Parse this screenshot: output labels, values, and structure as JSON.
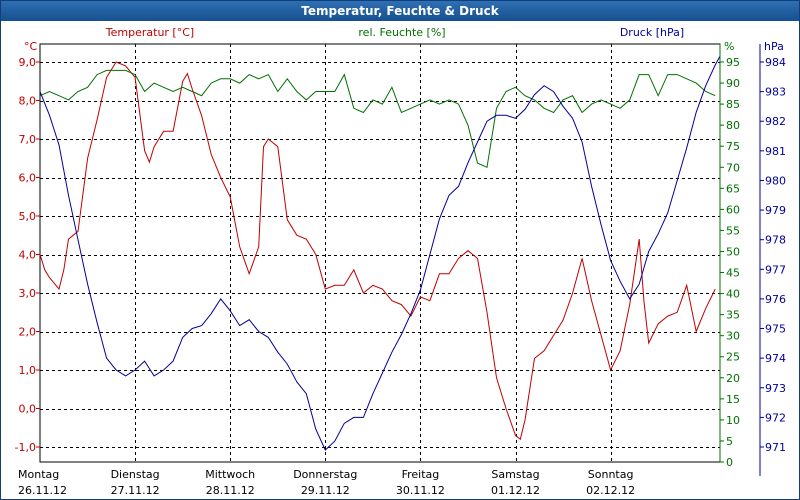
{
  "window": {
    "title": "Temperatur, Feuchte & Druck"
  },
  "colors": {
    "temperature": "#c00000",
    "humidity": "#007000",
    "pressure": "#000099",
    "grid": "#000000",
    "title_bar": "#1c5a9c"
  },
  "chart_data": {
    "type": "line",
    "title": "Temperatur, Feuchte & Druck",
    "axes": {
      "left": {
        "label": "Temperatur [°C]",
        "unit": "°C",
        "min": -1.0,
        "max": 9.0,
        "ticks": [
          "9,0",
          "8,0",
          "7,0",
          "6,0",
          "5,0",
          "4,0",
          "3,0",
          "2,0",
          "1,0",
          "0,0",
          "-1,0"
        ]
      },
      "right_inner": {
        "label": "rel. Feuchte [%]",
        "unit": "%",
        "min": 0,
        "max": 95,
        "ticks": [
          "95",
          "90",
          "85",
          "80",
          "75",
          "70",
          "65",
          "60",
          "55",
          "50",
          "45",
          "40",
          "35",
          "30",
          "25",
          "20",
          "15",
          "10",
          "5",
          "0"
        ]
      },
      "right_outer": {
        "label": "Druck [hPa]",
        "unit": "hPa",
        "min": 971,
        "max": 984,
        "ticks": [
          "984",
          "983",
          "982",
          "981",
          "980",
          "979",
          "978",
          "977",
          "976",
          "975",
          "974",
          "973",
          "972",
          "971"
        ]
      }
    },
    "x_labels": [
      {
        "day": "Montag",
        "date": "26.11.12"
      },
      {
        "day": "Dienstag",
        "date": "27.11.12"
      },
      {
        "day": "Mittwoch",
        "date": "28.11.12"
      },
      {
        "day": "Donnerstag",
        "date": "29.11.12"
      },
      {
        "day": "Freitag",
        "date": "30.11.12"
      },
      {
        "day": "Samstag",
        "date": "01.12.12"
      },
      {
        "day": "Sonntag",
        "date": "02.12.12"
      }
    ],
    "x_range_days": [
      0,
      7.15
    ],
    "grid": true,
    "series": [
      {
        "name": "Temperatur [°C]",
        "axis": "left",
        "x": [
          0,
          0.05,
          0.1,
          0.2,
          0.25,
          0.3,
          0.35,
          0.4,
          0.5,
          0.6,
          0.7,
          0.8,
          0.9,
          1.0,
          1.1,
          1.15,
          1.2,
          1.3,
          1.4,
          1.5,
          1.55,
          1.6,
          1.7,
          1.8,
          1.9,
          2.0,
          2.1,
          2.2,
          2.3,
          2.35,
          2.4,
          2.5,
          2.6,
          2.7,
          2.8,
          2.9,
          3.0,
          3.1,
          3.2,
          3.3,
          3.4,
          3.5,
          3.6,
          3.7,
          3.8,
          3.9,
          4.0,
          4.1,
          4.2,
          4.3,
          4.4,
          4.5,
          4.6,
          4.7,
          4.8,
          4.9,
          5.0,
          5.05,
          5.1,
          5.2,
          5.3,
          5.4,
          5.5,
          5.6,
          5.7,
          5.8,
          5.9,
          6.0,
          6.1,
          6.2,
          6.3,
          6.35,
          6.4,
          6.5,
          6.6,
          6.7,
          6.8,
          6.9,
          7.0,
          7.1
        ],
        "values": [
          4.0,
          3.6,
          3.4,
          3.1,
          3.6,
          4.4,
          4.5,
          4.6,
          6.5,
          7.5,
          8.6,
          9.0,
          8.9,
          8.6,
          6.7,
          6.4,
          6.8,
          7.2,
          7.2,
          8.5,
          8.7,
          8.3,
          7.6,
          6.6,
          6.0,
          5.5,
          4.2,
          3.5,
          4.2,
          6.8,
          7.0,
          6.8,
          4.9,
          4.5,
          4.4,
          4.0,
          3.1,
          3.2,
          3.2,
          3.6,
          3.0,
          3.2,
          3.1,
          2.8,
          2.7,
          2.4,
          2.9,
          2.8,
          3.5,
          3.5,
          3.9,
          4.1,
          3.9,
          2.5,
          0.8,
          0.0,
          -0.7,
          -0.8,
          -0.3,
          1.3,
          1.5,
          1.9,
          2.3,
          3.0,
          3.9,
          2.8,
          1.9,
          1.0,
          1.5,
          2.7,
          4.4,
          2.8,
          1.7,
          2.2,
          2.4,
          2.5,
          3.2,
          2.0,
          2.6,
          3.1
        ]
      },
      {
        "name": "rel. Feuchte [%]",
        "axis": "right_inner",
        "x": [
          0,
          0.1,
          0.2,
          0.3,
          0.4,
          0.5,
          0.6,
          0.7,
          0.8,
          0.9,
          1.0,
          1.1,
          1.2,
          1.3,
          1.4,
          1.5,
          1.6,
          1.7,
          1.8,
          1.9,
          2.0,
          2.1,
          2.2,
          2.3,
          2.4,
          2.5,
          2.6,
          2.7,
          2.8,
          2.9,
          3.0,
          3.1,
          3.2,
          3.3,
          3.4,
          3.5,
          3.6,
          3.7,
          3.8,
          3.9,
          4.0,
          4.1,
          4.2,
          4.3,
          4.4,
          4.5,
          4.6,
          4.7,
          4.8,
          4.9,
          5.0,
          5.1,
          5.2,
          5.3,
          5.4,
          5.5,
          5.6,
          5.7,
          5.8,
          5.9,
          6.0,
          6.1,
          6.2,
          6.3,
          6.4,
          6.5,
          6.6,
          6.7,
          6.8,
          6.9,
          7.0,
          7.1
        ],
        "values": [
          87,
          88,
          87,
          86,
          88,
          89,
          92,
          93,
          93,
          93,
          92,
          88,
          90,
          89,
          88,
          89,
          88,
          87,
          90,
          91,
          91,
          90,
          92,
          91,
          92,
          88,
          91,
          88,
          86,
          88,
          88,
          88,
          92,
          84,
          83,
          86,
          85,
          89,
          83,
          84,
          85,
          86,
          85,
          86,
          85,
          80,
          71,
          70,
          84,
          88,
          89,
          87,
          86,
          84,
          83,
          86,
          87,
          83,
          85,
          86,
          85,
          84,
          86,
          92,
          92,
          87,
          92,
          92,
          91,
          90,
          88,
          87
        ]
      },
      {
        "name": "Druck [hPa]",
        "axis": "right_outer",
        "x": [
          0,
          0.1,
          0.2,
          0.3,
          0.4,
          0.5,
          0.6,
          0.7,
          0.8,
          0.9,
          1.0,
          1.1,
          1.2,
          1.3,
          1.4,
          1.5,
          1.6,
          1.7,
          1.8,
          1.9,
          2.0,
          2.1,
          2.2,
          2.3,
          2.4,
          2.5,
          2.6,
          2.7,
          2.8,
          2.9,
          3.0,
          3.1,
          3.2,
          3.3,
          3.4,
          3.5,
          3.6,
          3.7,
          3.8,
          3.9,
          4.0,
          4.1,
          4.2,
          4.3,
          4.4,
          4.5,
          4.6,
          4.7,
          4.8,
          4.9,
          5.0,
          5.1,
          5.2,
          5.3,
          5.4,
          5.5,
          5.6,
          5.7,
          5.8,
          5.9,
          6.0,
          6.1,
          6.2,
          6.3,
          6.4,
          6.5,
          6.6,
          6.7,
          6.8,
          6.9,
          7.0,
          7.1,
          7.15
        ],
        "values": [
          983.0,
          982.2,
          981.2,
          979.5,
          978.0,
          976.5,
          975.2,
          974.0,
          973.6,
          973.4,
          973.6,
          973.9,
          973.4,
          973.6,
          973.9,
          974.7,
          975.0,
          975.1,
          975.5,
          976.0,
          975.6,
          975.1,
          975.3,
          974.9,
          974.7,
          974.2,
          973.8,
          973.2,
          972.8,
          971.6,
          970.9,
          971.2,
          971.8,
          972.0,
          972.0,
          972.8,
          973.5,
          974.2,
          974.8,
          975.5,
          976.3,
          977.5,
          978.7,
          979.5,
          979.8,
          980.6,
          981.3,
          982.0,
          982.2,
          982.2,
          982.1,
          982.4,
          982.9,
          983.2,
          983.0,
          982.5,
          982.1,
          981.3,
          979.8,
          978.5,
          977.3,
          976.6,
          976.0,
          976.5,
          977.6,
          978.2,
          978.9,
          980.0,
          981.1,
          982.3,
          983.2,
          983.9,
          984.2
        ]
      }
    ]
  }
}
